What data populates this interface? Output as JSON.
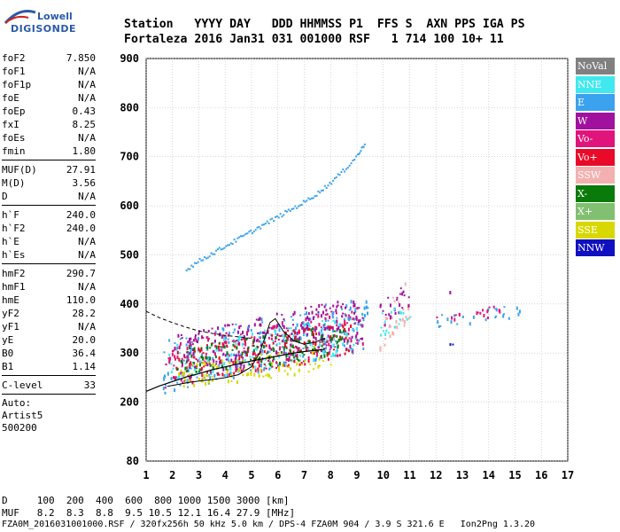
{
  "logo": {
    "line1": "Lowell",
    "line2": "DIGISONDE"
  },
  "header": {
    "row1": "Station   YYYY DAY   DDD HHMMSS P1  FFS S  AXN PPS IGA PS",
    "row2": "Fortaleza 2016 Jan31 031 001000 RSF   1 714 100 10+ 11"
  },
  "params": {
    "group1": [
      {
        "label": "foF2",
        "value": "7.850"
      },
      {
        "label": "foF1",
        "value": "N/A"
      },
      {
        "label": "foF1p",
        "value": "N/A"
      },
      {
        "label": "foE",
        "value": "N/A"
      },
      {
        "label": "foEp",
        "value": "0.43"
      },
      {
        "label": "fxI",
        "value": "8.25"
      },
      {
        "label": "foEs",
        "value": "N/A"
      },
      {
        "label": "fmin",
        "value": "1.80"
      }
    ],
    "group2": [
      {
        "label": "MUF(D)",
        "value": "27.91"
      },
      {
        "label": "M(D)",
        "value": "3.56"
      },
      {
        "label": "D",
        "value": "N/A"
      }
    ],
    "group3": [
      {
        "label": "h`F",
        "value": "240.0"
      },
      {
        "label": "h`F2",
        "value": "240.0"
      },
      {
        "label": "h`E",
        "value": "N/A"
      },
      {
        "label": "h`Es",
        "value": "N/A"
      }
    ],
    "group4": [
      {
        "label": "hmF2",
        "value": "290.7"
      },
      {
        "label": "hmF1",
        "value": "N/A"
      },
      {
        "label": "hmE",
        "value": "110.0"
      },
      {
        "label": "yF2",
        "value": "28.2"
      },
      {
        "label": "yF1",
        "value": "N/A"
      },
      {
        "label": "yE",
        "value": "20.0"
      },
      {
        "label": "B0",
        "value": "36.4"
      },
      {
        "label": "B1",
        "value": "1.14"
      }
    ],
    "clevel": {
      "label": "C-level",
      "value": "33"
    },
    "auto": [
      "Auto:",
      "Artist5",
      "500200"
    ]
  },
  "legend": [
    {
      "label": "NoVal",
      "color": "#808080"
    },
    {
      "label": "NNE",
      "color": "#40e8f0"
    },
    {
      "label": "E",
      "color": "#3aa2ee"
    },
    {
      "label": "W",
      "color": "#a0129e"
    },
    {
      "label": "Vo-",
      "color": "#e0147a"
    },
    {
      "label": "Vo+",
      "color": "#e80a28"
    },
    {
      "label": "SSW",
      "color": "#f4b0b0"
    },
    {
      "label": "X-",
      "color": "#0a7a0a"
    },
    {
      "label": "X+",
      "color": "#80c070"
    },
    {
      "label": "SSE",
      "color": "#d8d800"
    },
    {
      "label": "NNW",
      "color": "#1010c0"
    }
  ],
  "bottom": {
    "d_row": "D     100  200  400  600  800 1000 1500 3000 [km]",
    "muf_row": "MUF   8.2  8.3  8.8  9.5 10.5 12.1 16.4 27.9 [MHz]"
  },
  "footer": "FZA0M_2016031001000.RSF / 320fx256h 50 kHz 5.0 km / DPS-4 FZA0M 904 / 3.9 S 321.6 E   Ion2Png 1.3.20",
  "chart_data": {
    "type": "scatter",
    "x_ticks": [
      "1",
      "2",
      "3",
      "4",
      "5",
      "6",
      "7",
      "8",
      "9",
      "10",
      "11",
      "12",
      "13",
      "14",
      "15",
      "16",
      "17"
    ],
    "y_ticks": [
      "80",
      "200",
      "300",
      "400",
      "500",
      "600",
      "700",
      "800",
      "900"
    ],
    "xlim": [
      1,
      17
    ],
    "ylim": [
      80,
      900
    ],
    "grid": true,
    "legend_position": "right",
    "profile": {
      "x": [
        1.0,
        1.5,
        2.0,
        2.5,
        3.0,
        3.5,
        4.0,
        4.5,
        5.0,
        5.5,
        6.0,
        6.5,
        7.0,
        7.5,
        7.8
      ],
      "y": [
        222,
        233,
        242,
        251,
        258,
        266,
        272,
        278,
        284,
        289,
        294,
        299,
        303,
        306,
        308
      ]
    },
    "f_trace": {
      "x": [
        1.8,
        2.2,
        2.6,
        3.0,
        3.5,
        4.0,
        4.5,
        5.0,
        5.3,
        5.5,
        5.7,
        5.9,
        6.2,
        6.6,
        7.0,
        7.4,
        7.8
      ],
      "y": [
        232,
        236,
        240,
        243,
        246,
        250,
        256,
        272,
        300,
        330,
        362,
        370,
        345,
        325,
        318,
        322,
        330
      ]
    },
    "dashed_curve": {
      "x": [
        1.0,
        1.5,
        2.0,
        2.5,
        3.0,
        3.5,
        4.0,
        4.5,
        5.0
      ],
      "y": [
        385,
        372,
        362,
        353,
        345,
        340,
        336,
        333,
        330
      ]
    },
    "e_trace": {
      "x": [
        2.5,
        3.0,
        3.5,
        4.0,
        4.5,
        5.0,
        5.5,
        6.0,
        6.5,
        7.0,
        7.5,
        8.0,
        8.5,
        9.0,
        9.3
      ],
      "y": [
        472,
        490,
        505,
        520,
        535,
        550,
        565,
        580,
        595,
        610,
        628,
        650,
        675,
        705,
        730
      ]
    },
    "clusters": [
      {
        "x": [
          1.6,
          9.4
        ],
        "y": [
          220,
          420
        ],
        "color": "#3aa2ee"
      },
      {
        "x": [
          1.7,
          9.2
        ],
        "y": [
          230,
          400
        ],
        "color": "#e0147a"
      },
      {
        "x": [
          1.8,
          9.0
        ],
        "y": [
          240,
          380
        ],
        "color": "#40e8f0"
      },
      {
        "x": [
          2.0,
          9.2
        ],
        "y": [
          240,
          420
        ],
        "color": "#a0129e"
      },
      {
        "x": [
          2.0,
          8.8
        ],
        "y": [
          235,
          370
        ],
        "color": "#e80a28"
      },
      {
        "x": [
          2.2,
          8.0
        ],
        "y": [
          225,
          320
        ],
        "color": "#d8d800"
      },
      {
        "x": [
          2.0,
          8.5
        ],
        "y": [
          250,
          360
        ],
        "color": "#0a7a0a"
      },
      {
        "x": [
          9.8,
          11.0
        ],
        "y": [
          300,
          460
        ],
        "color": "#f4b0b0"
      },
      {
        "x": [
          9.8,
          11.0
        ],
        "y": [
          340,
          460
        ],
        "color": "#a0129e"
      },
      {
        "x": [
          9.8,
          11.0
        ],
        "y": [
          330,
          420
        ],
        "color": "#40e8f0"
      },
      {
        "x": [
          12.0,
          15.2
        ],
        "y": [
          355,
          400
        ],
        "color": "#3aa2ee"
      },
      {
        "x": [
          12.0,
          14.5
        ],
        "y": [
          360,
          400
        ],
        "color": "#e0147a"
      },
      {
        "x": [
          12.3,
          12.8
        ],
        "y": [
          310,
          330
        ],
        "color": "#1010c0"
      },
      {
        "x": [
          12.4,
          12.6
        ],
        "y": [
          420,
          440
        ],
        "color": "#a0129e"
      }
    ]
  }
}
